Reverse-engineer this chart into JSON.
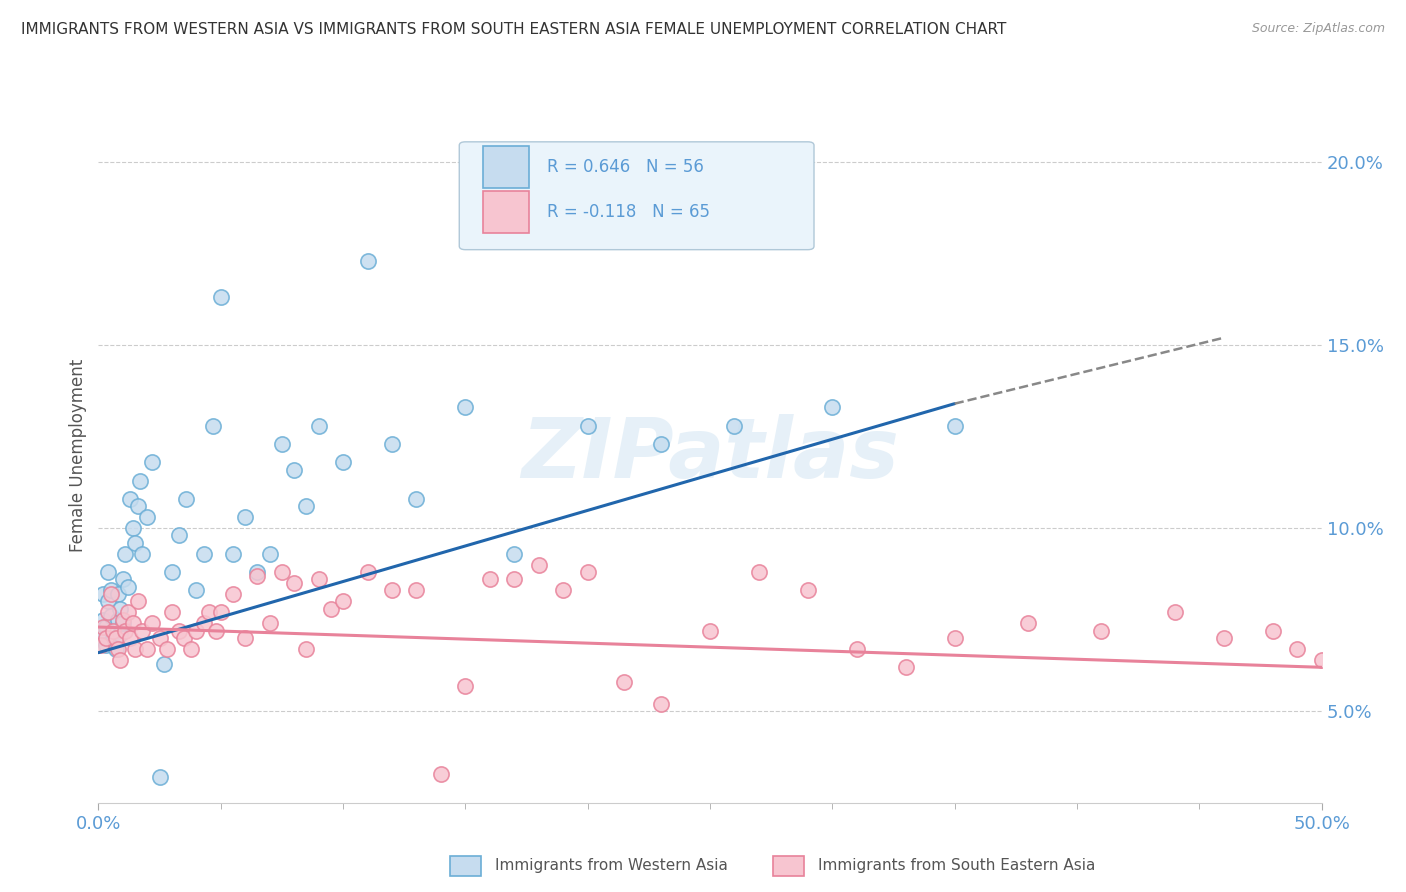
{
  "title": "IMMIGRANTS FROM WESTERN ASIA VS IMMIGRANTS FROM SOUTH EASTERN ASIA FEMALE UNEMPLOYMENT CORRELATION CHART",
  "source": "Source: ZipAtlas.com",
  "ylabel": "Female Unemployment",
  "watermark": "ZIPatlas",
  "series": [
    {
      "name": "Immigrants from Western Asia",
      "color": "#6baed6",
      "fill_color": "#c6dcef",
      "R": 0.646,
      "N": 56,
      "x": [
        0.001,
        0.002,
        0.002,
        0.003,
        0.003,
        0.004,
        0.004,
        0.005,
        0.005,
        0.006,
        0.007,
        0.007,
        0.008,
        0.008,
        0.009,
        0.009,
        0.01,
        0.01,
        0.011,
        0.012,
        0.013,
        0.014,
        0.015,
        0.016,
        0.017,
        0.018,
        0.02,
        0.022,
        0.025,
        0.027,
        0.03,
        0.033,
        0.036,
        0.04,
        0.043,
        0.047,
        0.05,
        0.055,
        0.06,
        0.065,
        0.07,
        0.075,
        0.08,
        0.085,
        0.09,
        0.1,
        0.11,
        0.12,
        0.13,
        0.15,
        0.17,
        0.2,
        0.23,
        0.26,
        0.3,
        0.35
      ],
      "y": [
        0.07,
        0.075,
        0.082,
        0.073,
        0.068,
        0.08,
        0.088,
        0.076,
        0.083,
        0.071,
        0.072,
        0.067,
        0.075,
        0.082,
        0.078,
        0.071,
        0.086,
        0.074,
        0.093,
        0.084,
        0.108,
        0.1,
        0.096,
        0.106,
        0.113,
        0.093,
        0.103,
        0.118,
        0.032,
        0.063,
        0.088,
        0.098,
        0.108,
        0.083,
        0.093,
        0.128,
        0.163,
        0.093,
        0.103,
        0.088,
        0.093,
        0.123,
        0.116,
        0.106,
        0.128,
        0.118,
        0.173,
        0.123,
        0.108,
        0.133,
        0.093,
        0.128,
        0.123,
        0.128,
        0.133,
        0.128
      ]
    },
    {
      "name": "Immigrants from South Eastern Asia",
      "color": "#e8829a",
      "fill_color": "#f7c5d0",
      "R": -0.118,
      "N": 65,
      "x": [
        0.001,
        0.002,
        0.003,
        0.004,
        0.005,
        0.006,
        0.007,
        0.008,
        0.009,
        0.01,
        0.011,
        0.012,
        0.013,
        0.014,
        0.015,
        0.016,
        0.018,
        0.02,
        0.022,
        0.025,
        0.028,
        0.03,
        0.033,
        0.035,
        0.038,
        0.04,
        0.043,
        0.045,
        0.048,
        0.05,
        0.055,
        0.06,
        0.065,
        0.07,
        0.075,
        0.08,
        0.085,
        0.09,
        0.095,
        0.1,
        0.11,
        0.12,
        0.13,
        0.14,
        0.15,
        0.16,
        0.17,
        0.18,
        0.19,
        0.2,
        0.215,
        0.23,
        0.25,
        0.27,
        0.29,
        0.31,
        0.33,
        0.35,
        0.38,
        0.41,
        0.44,
        0.46,
        0.48,
        0.49,
        0.5
      ],
      "y": [
        0.068,
        0.073,
        0.07,
        0.077,
        0.082,
        0.072,
        0.07,
        0.067,
        0.064,
        0.075,
        0.072,
        0.077,
        0.07,
        0.074,
        0.067,
        0.08,
        0.072,
        0.067,
        0.074,
        0.07,
        0.067,
        0.077,
        0.072,
        0.07,
        0.067,
        0.072,
        0.074,
        0.077,
        0.072,
        0.077,
        0.082,
        0.07,
        0.087,
        0.074,
        0.088,
        0.085,
        0.067,
        0.086,
        0.078,
        0.08,
        0.088,
        0.083,
        0.083,
        0.033,
        0.057,
        0.086,
        0.086,
        0.09,
        0.083,
        0.088,
        0.058,
        0.052,
        0.072,
        0.088,
        0.083,
        0.067,
        0.062,
        0.07,
        0.074,
        0.072,
        0.077,
        0.07,
        0.072,
        0.067,
        0.064
      ]
    }
  ],
  "xlim": [
    0.0,
    0.5
  ],
  "ylim": [
    0.025,
    0.215
  ],
  "yticks": [
    0.05,
    0.1,
    0.15,
    0.2
  ],
  "ytick_labels": [
    "5.0%",
    "10.0%",
    "15.0%",
    "20.0%"
  ],
  "xtick_labels": [
    "0.0%",
    "50.0%"
  ],
  "trend_blue_x0": 0.0,
  "trend_blue_x1": 0.35,
  "trend_blue_y0": 0.066,
  "trend_blue_y1": 0.134,
  "trend_blue_dash_x0": 0.35,
  "trend_blue_dash_x1": 0.46,
  "trend_blue_dash_y0": 0.134,
  "trend_blue_dash_y1": 0.152,
  "trend_pink_x0": 0.0,
  "trend_pink_x1": 0.5,
  "trend_pink_y0": 0.073,
  "trend_pink_y1": 0.062,
  "legend_R1": "R = 0.646",
  "legend_N1": "N = 56",
  "legend_R2": "R = -0.118",
  "legend_N2": "N = 65",
  "background_color": "#ffffff",
  "grid_color": "#cccccc",
  "title_fontsize": 11,
  "tick_color": "#5b9bd5"
}
